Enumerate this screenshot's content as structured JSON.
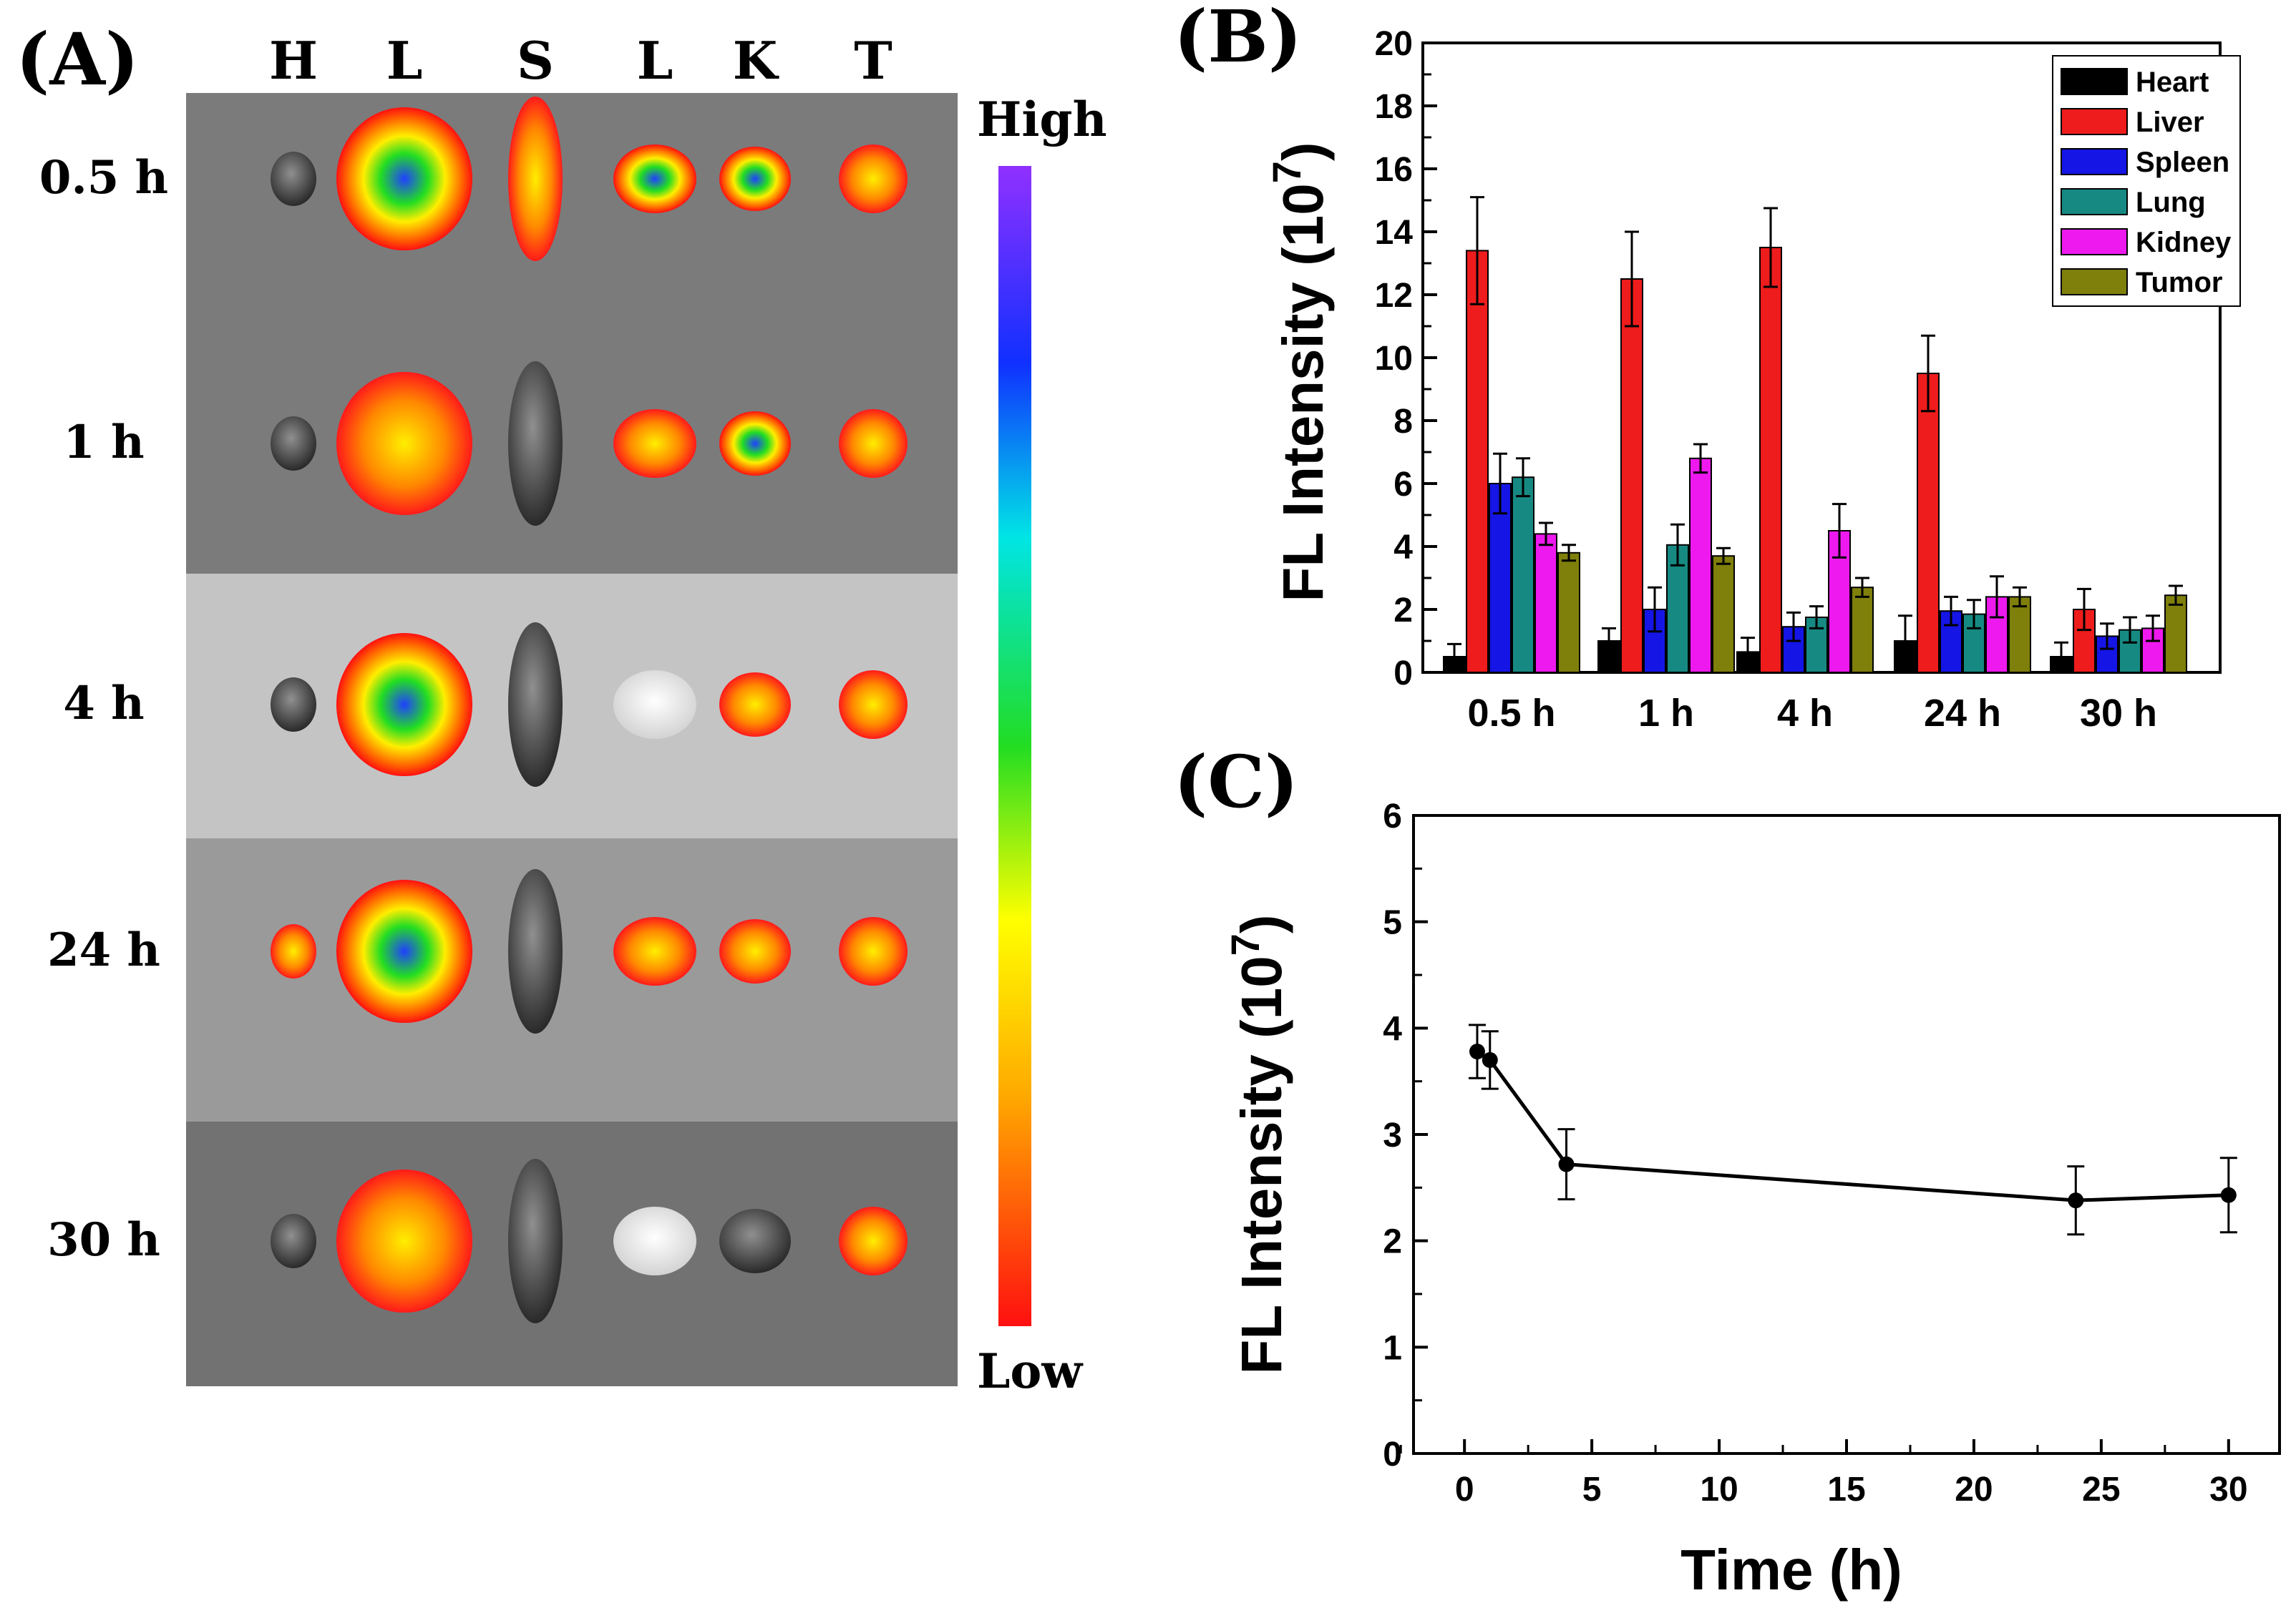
{
  "panels": {
    "a_label": "(A)",
    "b_label": "(B)",
    "c_label": "(C)"
  },
  "imaging": {
    "organ_columns": [
      "H",
      "L",
      "S",
      "L",
      "K",
      "T"
    ],
    "time_rows": [
      "0.5 h",
      "1 h",
      "4 h",
      "24 h",
      "30 h"
    ],
    "scale_high": "High",
    "scale_low": "Low",
    "organ_intensity_note_levels": [
      [
        0.1,
        0.8,
        0.3,
        0.6,
        0.7,
        0.5
      ],
      [
        0.1,
        0.5,
        0.0,
        0.4,
        0.7,
        0.3
      ],
      [
        0.0,
        0.6,
        0.0,
        0.0,
        0.5,
        0.4
      ],
      [
        0.2,
        0.7,
        0.0,
        0.2,
        0.2,
        0.2
      ],
      [
        0.0,
        0.4,
        0.1,
        0.0,
        0.0,
        0.5
      ]
    ]
  },
  "colors": {
    "heart": "#000000",
    "liver": "#ee1c1c",
    "spleen": "#1515e6",
    "lung": "#168a82",
    "kidney": "#ee19ee",
    "tumor": "#7f7f0c"
  },
  "chart_data": [
    {
      "type": "bar",
      "title": "",
      "xlabel": "",
      "ylabel": "FL Intensity (10",
      "ylabel_sup": "7",
      "ylabel_close": ")",
      "ylim": [
        0,
        20
      ],
      "yticks": [
        0,
        2,
        4,
        6,
        8,
        10,
        12,
        14,
        16,
        18,
        20
      ],
      "categories": [
        "0.5 h",
        "1 h",
        "4 h",
        "24 h",
        "30 h"
      ],
      "legend_position": "top-right",
      "series": [
        {
          "name": "Heart",
          "color_key": "heart",
          "values": [
            0.5,
            1.0,
            0.65,
            1.0,
            0.5
          ],
          "errors": [
            0.4,
            0.4,
            0.45,
            0.8,
            0.45
          ]
        },
        {
          "name": "Liver",
          "color_key": "liver",
          "values": [
            13.4,
            12.5,
            13.5,
            9.5,
            2.0
          ],
          "errors": [
            1.7,
            1.5,
            1.25,
            1.2,
            0.65
          ]
        },
        {
          "name": "Spleen",
          "color_key": "spleen",
          "values": [
            6.0,
            2.0,
            1.45,
            1.95,
            1.15
          ],
          "errors": [
            0.95,
            0.7,
            0.45,
            0.45,
            0.4
          ]
        },
        {
          "name": "Lung",
          "color_key": "lung",
          "values": [
            6.2,
            4.05,
            1.75,
            1.85,
            1.35
          ],
          "errors": [
            0.6,
            0.65,
            0.35,
            0.45,
            0.4
          ]
        },
        {
          "name": "Kidney",
          "color_key": "kidney",
          "values": [
            4.4,
            6.8,
            4.5,
            2.4,
            1.4
          ],
          "errors": [
            0.35,
            0.45,
            0.85,
            0.65,
            0.4
          ]
        },
        {
          "name": "Tumor",
          "color_key": "tumor",
          "values": [
            3.8,
            3.7,
            2.7,
            2.4,
            2.45
          ],
          "errors": [
            0.25,
            0.25,
            0.3,
            0.3,
            0.3
          ]
        }
      ]
    },
    {
      "type": "line",
      "title": "",
      "xlabel": "Time (h)",
      "ylabel": "FL Intensity (10",
      "ylabel_sup": "7",
      "ylabel_close": ")",
      "xlim": [
        -2,
        32
      ],
      "ylim": [
        0,
        6
      ],
      "xticks": [
        0,
        5,
        10,
        15,
        20,
        25,
        30
      ],
      "yticks": [
        0,
        1,
        2,
        3,
        4,
        5,
        6
      ],
      "x": [
        0.5,
        1,
        4,
        24,
        30
      ],
      "y": [
        3.78,
        3.7,
        2.72,
        2.38,
        2.43
      ],
      "errors": [
        0.25,
        0.27,
        0.33,
        0.32,
        0.35
      ]
    }
  ]
}
